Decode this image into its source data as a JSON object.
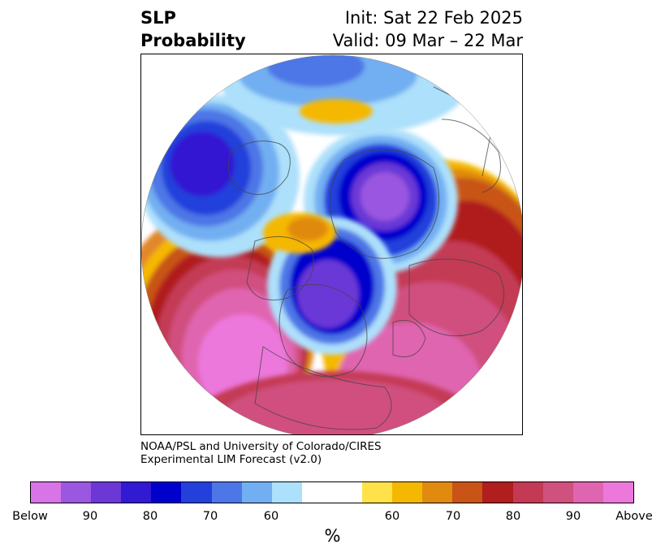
{
  "title": {
    "left_line1": "SLP",
    "left_line2": "Probability",
    "right_line1": "Init: Sat 22 Feb 2025",
    "right_line2": "Valid: 09 Mar – 22 Mar"
  },
  "credit": {
    "line1": "NOAA/PSL and University of Colorado/CIRES",
    "line2": "Experimental LIM Forecast (v2.0)"
  },
  "colorbar": {
    "colors": [
      "#d774e6",
      "#9a57e0",
      "#6b38d6",
      "#3219d2",
      "#0000cc",
      "#2440db",
      "#4d76e6",
      "#72aff2",
      "#ade0fb",
      "#ffffff",
      "#ffffff",
      "#ffe24a",
      "#f5b800",
      "#e08a10",
      "#c85418",
      "#b01e1e",
      "#c43a55",
      "#d0507e",
      "#e065b0",
      "#ec78dc"
    ],
    "tick_labels": [
      "Below",
      "90",
      "80",
      "70",
      "60",
      "60",
      "70",
      "80",
      "90",
      "Above"
    ],
    "unit": "%"
  },
  "map": {
    "projection": "north-polar-stereographic",
    "field": "sea level pressure probability"
  }
}
